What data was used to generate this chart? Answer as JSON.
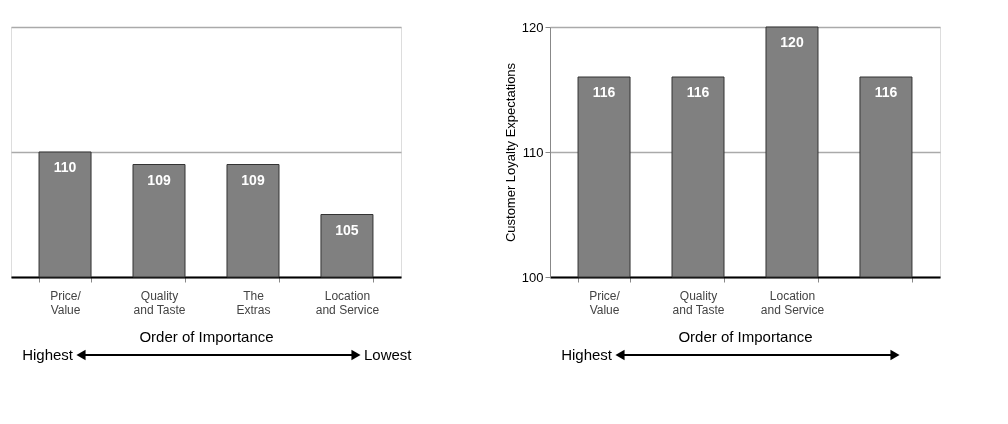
{
  "chart_data": [
    {
      "type": "bar",
      "categories": [
        "Price/ Value",
        "Quality and Taste",
        "The Extras",
        "Location and Service"
      ],
      "values": [
        110,
        109,
        109,
        105
      ],
      "color": "#808080",
      "ylim": [
        100,
        120
      ],
      "yticks": [
        100,
        110,
        120
      ],
      "grid": "y",
      "tick_labels": "x",
      "data_labels": true,
      "xlabel": "Order of Importance",
      "annotations": [
        "Highest",
        "Lowest"
      ]
    },
    {
      "type": "bar",
      "categories": [
        "Price/ Value",
        "Quality and Taste",
        "Location and Service",
        null
      ],
      "values": [
        116,
        116,
        120,
        116
      ],
      "color": "#808080",
      "ylim": [
        100,
        120
      ],
      "yticks": [
        100,
        110,
        120
      ],
      "grid": "y",
      "data_labels": true,
      "xlabel": "Order of Importance",
      "ylabel": "Customer Loyalty Expectations",
      "annotations": [
        "Highest"
      ]
    }
  ]
}
